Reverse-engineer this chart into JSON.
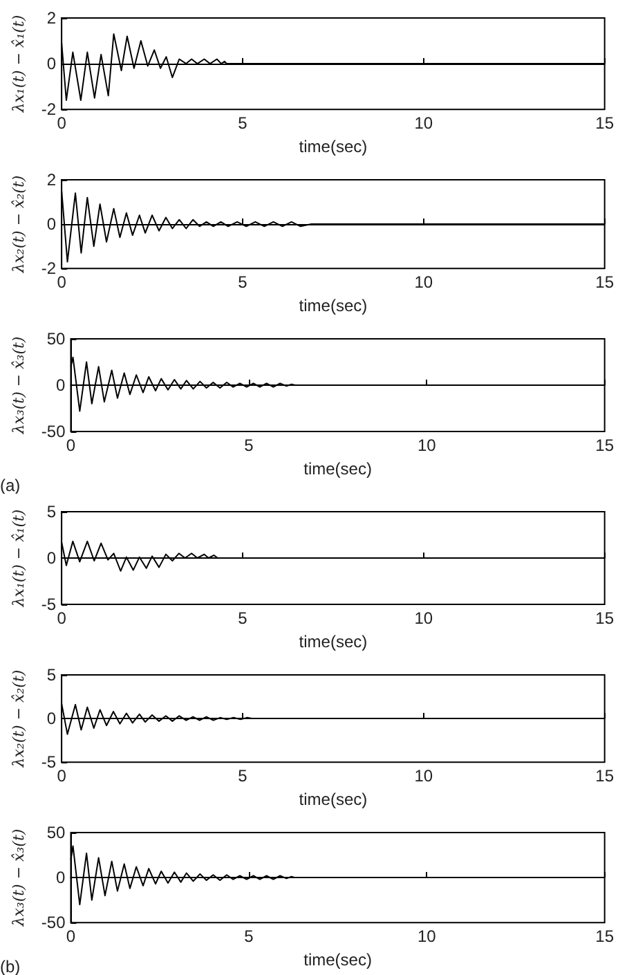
{
  "chart_data": [
    {
      "type": "line",
      "xlabel": "time(sec)",
      "ylabel": "λx₁(t) − x̂₁(t)",
      "color": "#000000",
      "xlim": [
        0,
        15
      ],
      "xticks": [
        0,
        5,
        10,
        15
      ],
      "ylim": [
        -2,
        2
      ],
      "yticks": [
        -2,
        0,
        2
      ],
      "x": [
        0,
        0.13,
        0.31,
        0.53,
        0.71,
        0.91,
        1.09,
        1.29,
        1.44,
        1.65,
        1.81,
        2.0,
        2.19,
        2.38,
        2.56,
        2.73,
        2.89,
        3.06,
        3.25,
        3.44,
        3.59,
        3.75,
        3.94,
        4.1,
        4.29,
        4.41,
        4.5,
        4.56,
        15
      ],
      "values": [
        0.9,
        -1.6,
        0.5,
        -1.6,
        0.5,
        -1.5,
        0.4,
        -1.4,
        1.3,
        -0.3,
        1.2,
        -0.2,
        1.0,
        -0.1,
        0.6,
        -0.2,
        0.3,
        -0.6,
        0.2,
        0,
        0.2,
        0,
        0.2,
        0,
        0.2,
        0,
        0.1,
        0,
        0
      ]
    },
    {
      "type": "line",
      "xlabel": "time(sec)",
      "ylabel": "λx₂(t) − x̂₂(t)",
      "color": "#000000",
      "xlim": [
        0,
        15
      ],
      "xticks": [
        0,
        5,
        10,
        15
      ],
      "ylim": [
        -2,
        2
      ],
      "yticks": [
        -2,
        0,
        2
      ],
      "x": [
        0,
        0.16,
        0.38,
        0.54,
        0.71,
        0.89,
        1.06,
        1.24,
        1.44,
        1.61,
        1.79,
        1.96,
        2.15,
        2.31,
        2.5,
        2.69,
        2.88,
        3.06,
        3.25,
        3.44,
        3.63,
        3.81,
        4.0,
        4.19,
        4.4,
        4.6,
        4.85,
        5.1,
        5.35,
        5.6,
        5.85,
        6.1,
        6.35,
        6.6,
        6.9,
        15
      ],
      "values": [
        1.5,
        -1.7,
        1.4,
        -1.3,
        1.2,
        -1.0,
        0.9,
        -0.8,
        0.7,
        -0.6,
        0.5,
        -0.5,
        0.4,
        -0.4,
        0.4,
        -0.3,
        0.3,
        -0.2,
        0.2,
        -0.2,
        0.2,
        -0.1,
        0.1,
        -0.1,
        0.1,
        -0.1,
        0.1,
        -0.1,
        0.1,
        -0.1,
        0.1,
        -0.1,
        0.1,
        -0.1,
        0,
        0
      ]
    },
    {
      "type": "line",
      "xlabel": "time(sec)",
      "ylabel": "λx₃(t) − x̂₃(t)",
      "color": "#000000",
      "xlim": [
        0,
        15
      ],
      "xticks": [
        0,
        5,
        10,
        15
      ],
      "ylim": [
        -50,
        50
      ],
      "yticks": [
        -50,
        0,
        50
      ],
      "annotations": [
        "(a)"
      ],
      "x": [
        0,
        0.06,
        0.25,
        0.44,
        0.59,
        0.78,
        0.94,
        1.15,
        1.31,
        1.5,
        1.66,
        1.84,
        2.03,
        2.19,
        2.38,
        2.54,
        2.73,
        2.91,
        3.09,
        3.25,
        3.44,
        3.63,
        3.81,
        4.0,
        4.19,
        4.38,
        4.56,
        4.75,
        4.94,
        5.13,
        5.31,
        5.5,
        5.69,
        5.88,
        6.06,
        6.2,
        6.3,
        15
      ],
      "values": [
        20,
        30,
        -28,
        25,
        -20,
        20,
        -18,
        16,
        -14,
        13,
        -10,
        11,
        -8,
        9,
        -6,
        7,
        -5,
        6,
        -4,
        5,
        -4,
        4,
        -3,
        3,
        -3,
        3,
        -2,
        2,
        -2,
        2,
        -2,
        2,
        -2,
        2,
        -1,
        1,
        0,
        0
      ]
    },
    {
      "type": "line",
      "xlabel": "time(sec)",
      "ylabel": "λx₁(t) − x̂₁(t)",
      "color": "#000000",
      "xlim": [
        0,
        15
      ],
      "xticks": [
        0,
        5,
        10,
        15
      ],
      "ylim": [
        -5,
        5
      ],
      "yticks": [
        -5,
        0,
        5
      ],
      "x": [
        0,
        0.13,
        0.31,
        0.5,
        0.71,
        0.9,
        1.09,
        1.28,
        1.44,
        1.63,
        1.79,
        1.98,
        2.15,
        2.34,
        2.5,
        2.69,
        2.88,
        3.06,
        3.24,
        3.41,
        3.59,
        3.75,
        3.94,
        4.06,
        4.21,
        4.31,
        15
      ],
      "values": [
        1.7,
        -0.8,
        1.8,
        -0.4,
        1.8,
        -0.3,
        1.6,
        -0.2,
        0.5,
        -1.4,
        0.1,
        -1.3,
        0.1,
        -1.1,
        0.2,
        -1.0,
        0.4,
        -0.3,
        0.5,
        0,
        0.5,
        0,
        0.4,
        0,
        0.3,
        0,
        0
      ]
    },
    {
      "type": "line",
      "xlabel": "time(sec)",
      "ylabel": "λx₂(t) − x̂₂(t)",
      "color": "#000000",
      "xlim": [
        0,
        15
      ],
      "xticks": [
        0,
        5,
        10,
        15
      ],
      "ylim": [
        -5,
        5
      ],
      "yticks": [
        -5,
        0,
        5
      ],
      "x": [
        0,
        0.16,
        0.38,
        0.54,
        0.71,
        0.89,
        1.06,
        1.24,
        1.43,
        1.61,
        1.79,
        1.96,
        2.15,
        2.31,
        2.5,
        2.69,
        2.88,
        3.06,
        3.25,
        3.44,
        3.63,
        3.81,
        4.0,
        4.19,
        4.38,
        4.56,
        4.75,
        4.94,
        5.13,
        5.25,
        15
      ],
      "values": [
        1.7,
        -1.8,
        1.6,
        -1.3,
        1.3,
        -1.1,
        1.0,
        -0.8,
        0.8,
        -0.6,
        0.6,
        -0.5,
        0.5,
        -0.4,
        0.4,
        -0.3,
        0.3,
        -0.3,
        0.3,
        -0.2,
        0.2,
        -0.2,
        0.2,
        -0.2,
        0.1,
        -0.1,
        0.1,
        -0.1,
        0.1,
        0,
        0
      ]
    },
    {
      "type": "line",
      "xlabel": "time(sec)",
      "ylabel": "λx₃(t) − x̂₃(t)",
      "color": "#000000",
      "xlim": [
        0,
        15
      ],
      "xticks": [
        0,
        5,
        10,
        15
      ],
      "ylim": [
        -50,
        50
      ],
      "yticks": [
        -50,
        0,
        50
      ],
      "annotations": [
        "(b)"
      ],
      "x": [
        0,
        0.06,
        0.25,
        0.44,
        0.59,
        0.78,
        0.96,
        1.15,
        1.31,
        1.5,
        1.66,
        1.84,
        2.03,
        2.19,
        2.38,
        2.54,
        2.73,
        2.91,
        3.09,
        3.25,
        3.44,
        3.63,
        3.81,
        4.0,
        4.19,
        4.38,
        4.56,
        4.75,
        4.94,
        5.13,
        5.31,
        5.5,
        5.69,
        5.88,
        6.06,
        6.2,
        6.3,
        15
      ],
      "values": [
        20,
        35,
        -30,
        27,
        -25,
        22,
        -20,
        18,
        -15,
        15,
        -12,
        12,
        -9,
        10,
        -7,
        7,
        -6,
        6,
        -5,
        5,
        -4,
        4,
        -3,
        3,
        -3,
        3,
        -2,
        2,
        -2,
        2,
        -2,
        2,
        -2,
        2,
        -1,
        1,
        0,
        0
      ]
    }
  ]
}
